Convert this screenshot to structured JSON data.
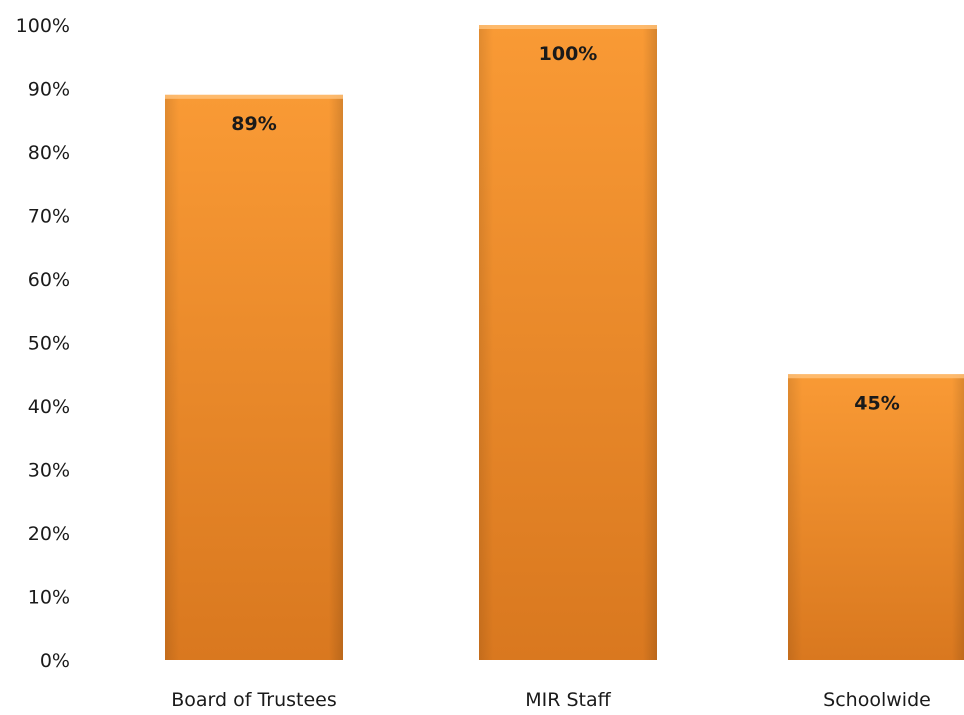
{
  "chart_data": {
    "type": "bar",
    "categories": [
      "Board of Trustees",
      "MIR Staff",
      "Schoolwide"
    ],
    "values": [
      89,
      100,
      45
    ],
    "data_labels": [
      "89%",
      "100%",
      "45%"
    ],
    "yticks": [
      "0%",
      "10%",
      "20%",
      "30%",
      "40%",
      "50%",
      "60%",
      "70%",
      "80%",
      "90%",
      "100%"
    ],
    "ylim": [
      0,
      100
    ],
    "title": "",
    "xlabel": "",
    "ylabel": "",
    "grid": false,
    "legend": "none",
    "bar_color": "#f28c28"
  }
}
